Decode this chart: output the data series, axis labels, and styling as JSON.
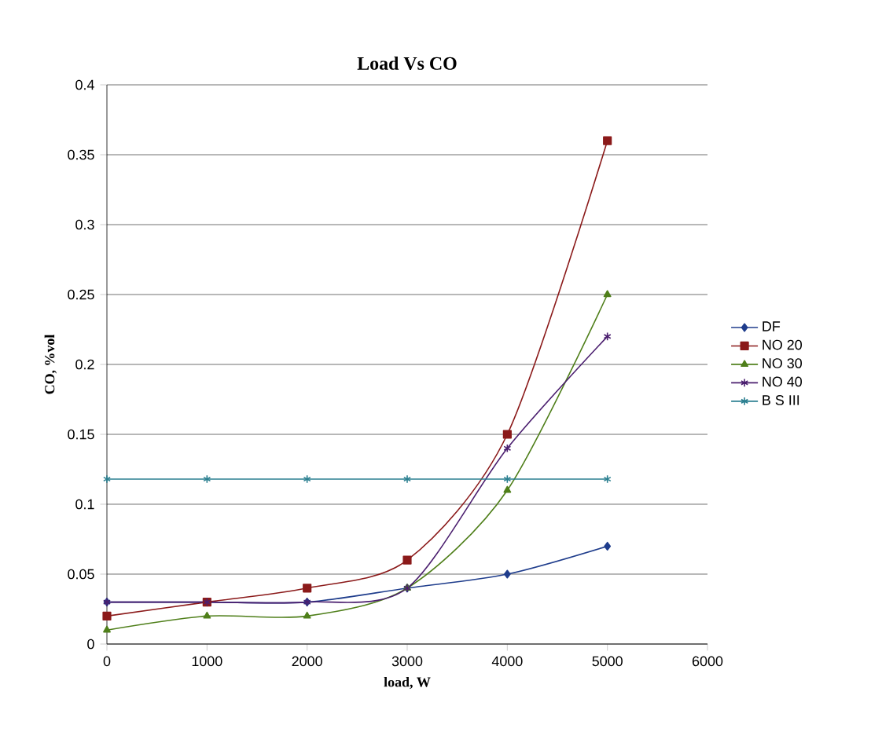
{
  "chart_data": {
    "type": "line",
    "title": "Load Vs CO",
    "xlabel": "load, W",
    "ylabel": "CO, %vol",
    "x": [
      0,
      1000,
      2000,
      3000,
      4000,
      5000
    ],
    "xlim": [
      0,
      6000
    ],
    "xticks": [
      0,
      1000,
      2000,
      3000,
      4000,
      5000,
      6000
    ],
    "ylim": [
      0,
      0.4
    ],
    "yticks": [
      0,
      0.05,
      0.1,
      0.15,
      0.2,
      0.25,
      0.3,
      0.35,
      0.4
    ],
    "grid": "y",
    "legend": "right",
    "series": [
      {
        "name": "DF",
        "color": "#1f3d8c",
        "marker": "diamond",
        "values": [
          0.03,
          0.03,
          0.03,
          0.04,
          0.05,
          0.07
        ]
      },
      {
        "name": "NO 20",
        "color": "#8b1a1a",
        "marker": "square",
        "values": [
          0.02,
          0.03,
          0.04,
          0.06,
          0.15,
          0.36
        ]
      },
      {
        "name": "NO 30",
        "color": "#4f7f1a",
        "marker": "triangle",
        "values": [
          0.01,
          0.02,
          0.02,
          0.04,
          0.11,
          0.25
        ]
      },
      {
        "name": "NO 40",
        "color": "#4b1f6f",
        "marker": "cross",
        "values": [
          0.03,
          0.03,
          0.03,
          0.04,
          0.14,
          0.22
        ]
      },
      {
        "name": "B S III",
        "color": "#2a7f90",
        "marker": "cross",
        "values": [
          0.118,
          0.118,
          0.118,
          0.118,
          0.118,
          0.118
        ]
      }
    ]
  }
}
